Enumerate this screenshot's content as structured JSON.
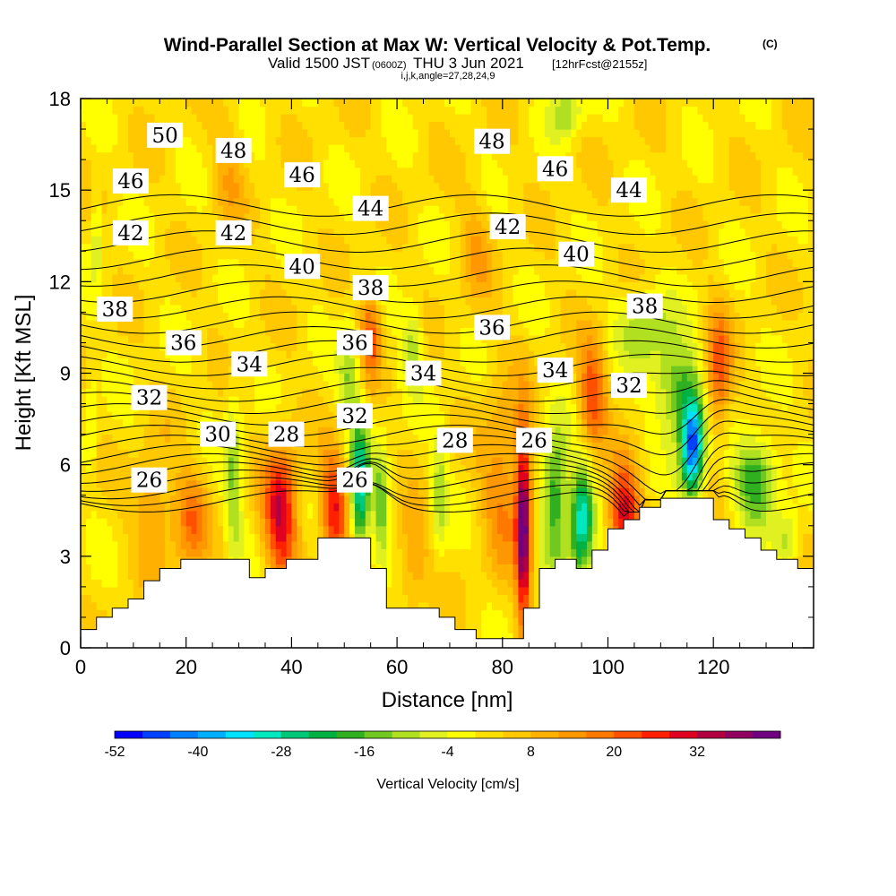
{
  "chart_data": {
    "type": "heatmap",
    "title": "Wind-Parallel Section at Max W: Vertical Velocity & Pot.Temp.",
    "title_mark": "(C)",
    "subtitle_main": "Valid 1500 JST",
    "subtitle_utc": "(0600Z)",
    "subtitle_date": "THU 3 Jun 2021",
    "subtitle_run": "[12hrFcst@2155z]",
    "subtitle_indices": "i,j,k,angle=27,28,24,9",
    "xlabel": "Distance [nm]",
    "ylabel": "Height [Kft MSL]",
    "xlim": [
      0,
      139
    ],
    "ylim": [
      0,
      18
    ],
    "x_ticks": [
      0,
      20,
      40,
      60,
      80,
      100,
      120
    ],
    "y_ticks": [
      0,
      3,
      6,
      9,
      12,
      15,
      18
    ],
    "colorbar": {
      "label": "Vertical Velocity [cm/s]",
      "min": -52,
      "max": 40,
      "step": 4,
      "tick_values": [
        -52,
        -40,
        -28,
        -16,
        -4,
        8,
        20,
        32
      ],
      "colors": [
        "#0000ff",
        "#0040ff",
        "#0080ff",
        "#00b0ff",
        "#00e0ff",
        "#00e8c0",
        "#00c878",
        "#00b040",
        "#30b020",
        "#70c820",
        "#b0e020",
        "#e0f020",
        "#ffff00",
        "#ffe000",
        "#ffc800",
        "#ffb000",
        "#ff9800",
        "#ff7800",
        "#ff5000",
        "#ff2000",
        "#e00020",
        "#b00040",
        "#900060",
        "#700080"
      ]
    },
    "terrain": [
      [
        0,
        0.6
      ],
      [
        3,
        0.6
      ],
      [
        3,
        1
      ],
      [
        6,
        1
      ],
      [
        6,
        1.3
      ],
      [
        9,
        1.3
      ],
      [
        9,
        1.6
      ],
      [
        12,
        1.6
      ],
      [
        12,
        2.2
      ],
      [
        15,
        2.2
      ],
      [
        15,
        2.6
      ],
      [
        19,
        2.6
      ],
      [
        19,
        2.9
      ],
      [
        32,
        2.9
      ],
      [
        32,
        2.3
      ],
      [
        35,
        2.3
      ],
      [
        35,
        2.6
      ],
      [
        39,
        2.6
      ],
      [
        39,
        2.9
      ],
      [
        45,
        2.9
      ],
      [
        45,
        3.6
      ],
      [
        55,
        3.6
      ],
      [
        55,
        2.6
      ],
      [
        58,
        2.6
      ],
      [
        58,
        1.3
      ],
      [
        68,
        1.3
      ],
      [
        68,
        1
      ],
      [
        71,
        1
      ],
      [
        71,
        0.6
      ],
      [
        75,
        0.6
      ],
      [
        75,
        0.3
      ],
      [
        84,
        0.3
      ],
      [
        84,
        1.3
      ],
      [
        87,
        1.3
      ],
      [
        87,
        2.6
      ],
      [
        90,
        2.6
      ],
      [
        90,
        2.9
      ],
      [
        94,
        2.9
      ],
      [
        94,
        2.6
      ],
      [
        97,
        2.6
      ],
      [
        97,
        3.2
      ],
      [
        100,
        3.2
      ],
      [
        100,
        3.9
      ],
      [
        103,
        3.9
      ],
      [
        103,
        4.2
      ],
      [
        106,
        4.2
      ],
      [
        106,
        4.6
      ],
      [
        110,
        4.6
      ],
      [
        110,
        4.9
      ],
      [
        120,
        4.9
      ],
      [
        120,
        4.2
      ],
      [
        123,
        4.2
      ],
      [
        123,
        3.9
      ],
      [
        126,
        3.9
      ],
      [
        126,
        3.6
      ],
      [
        129,
        3.6
      ],
      [
        129,
        3.2
      ],
      [
        132,
        3.2
      ],
      [
        132,
        2.9
      ],
      [
        136,
        2.9
      ],
      [
        136,
        2.6
      ],
      [
        139,
        2.6
      ]
    ],
    "w_features": [
      {
        "x": 14,
        "z": 4.5,
        "w": 12,
        "rx": 4,
        "rz": 2
      },
      {
        "x": 21,
        "z": 4.2,
        "w": 16,
        "rx": 3,
        "rz": 1.6
      },
      {
        "x": 29,
        "z": 5.5,
        "w": -14,
        "rx": 1.6,
        "rz": 2.8
      },
      {
        "x": 38,
        "z": 4.4,
        "w": 30,
        "rx": 3.2,
        "rz": 2.2
      },
      {
        "x": 48,
        "z": 4.6,
        "w": 26,
        "rx": 2.6,
        "rz": 1.8
      },
      {
        "x": 53,
        "z": 5.2,
        "w": -32,
        "rx": 1.8,
        "rz": 2.2
      },
      {
        "x": 57,
        "z": 4.6,
        "w": -16,
        "rx": 1.4,
        "rz": 2
      },
      {
        "x": 55,
        "z": 10.3,
        "w": 20,
        "rx": 2,
        "rz": 1.4
      },
      {
        "x": 51,
        "z": 9,
        "w": -14,
        "rx": 2,
        "rz": 1.6
      },
      {
        "x": 63,
        "z": 3,
        "w": 12,
        "rx": 3,
        "rz": 1.6
      },
      {
        "x": 68,
        "z": 5,
        "w": -12,
        "rx": 1.5,
        "rz": 2
      },
      {
        "x": 63,
        "z": 10,
        "w": -12,
        "rx": 2,
        "rz": 1.4
      },
      {
        "x": 80,
        "z": 5.5,
        "w": 14,
        "rx": 4,
        "rz": 3
      },
      {
        "x": 84,
        "z": 4,
        "w": 40,
        "rx": 1.4,
        "rz": 3.2
      },
      {
        "x": 90,
        "z": 5,
        "w": -24,
        "rx": 2.4,
        "rz": 2.2
      },
      {
        "x": 95,
        "z": 4.2,
        "w": -34,
        "rx": 2.2,
        "rz": 1.8
      },
      {
        "x": 103,
        "z": 4.4,
        "w": 30,
        "rx": 3,
        "rz": 1.6
      },
      {
        "x": 97,
        "z": 8.2,
        "w": 22,
        "rx": 2.6,
        "rz": 1.8
      },
      {
        "x": 107,
        "z": 10.5,
        "w": -14,
        "rx": 5,
        "rz": 1.2
      },
      {
        "x": 113,
        "z": 8.5,
        "w": -20,
        "rx": 4,
        "rz": 1.5
      },
      {
        "x": 116,
        "z": 6.6,
        "w": -48,
        "rx": 2.2,
        "rz": 1.6
      },
      {
        "x": 121,
        "z": 9,
        "w": 20,
        "rx": 2.4,
        "rz": 2
      },
      {
        "x": 128,
        "z": 5.6,
        "w": -22,
        "rx": 4,
        "rz": 1.4
      },
      {
        "x": 134,
        "z": 3.5,
        "w": -12,
        "rx": 2.2,
        "rz": 1
      },
      {
        "x": 92,
        "z": 17.6,
        "w": -14,
        "rx": 3,
        "rz": 0.8
      },
      {
        "x": 3,
        "z": 13.6,
        "w": -10,
        "rx": 1,
        "rz": 1.6
      },
      {
        "x": 2,
        "z": 7.4,
        "w": -8,
        "rx": 1,
        "rz": 1.6
      },
      {
        "x": 28,
        "z": 15.5,
        "w": 8,
        "rx": 3,
        "rz": 2
      },
      {
        "x": 75,
        "z": 13,
        "w": 8,
        "rx": 3,
        "rz": 2
      }
    ],
    "theta_levels": [
      26,
      27,
      28,
      29,
      30,
      31,
      32,
      33,
      34,
      35,
      36,
      37,
      38,
      39,
      40,
      41,
      42,
      43,
      44,
      45,
      46,
      47,
      48,
      49,
      50
    ],
    "theta_labels": [
      {
        "text": "50",
        "x": 16,
        "z": 16.8
      },
      {
        "text": "48",
        "x": 29,
        "z": 16.3
      },
      {
        "text": "48",
        "x": 78,
        "z": 16.6
      },
      {
        "text": "46",
        "x": 9.5,
        "z": 15.3
      },
      {
        "text": "46",
        "x": 42,
        "z": 15.5
      },
      {
        "text": "46",
        "x": 90,
        "z": 15.7
      },
      {
        "text": "44",
        "x": 55,
        "z": 14.4
      },
      {
        "text": "44",
        "x": 104,
        "z": 15
      },
      {
        "text": "42",
        "x": 9.5,
        "z": 13.6
      },
      {
        "text": "42",
        "x": 29,
        "z": 13.6
      },
      {
        "text": "42",
        "x": 81,
        "z": 13.8
      },
      {
        "text": "40",
        "x": 42,
        "z": 12.5
      },
      {
        "text": "40",
        "x": 94,
        "z": 12.9
      },
      {
        "text": "38",
        "x": 6.5,
        "z": 11.1
      },
      {
        "text": "38",
        "x": 55,
        "z": 11.8
      },
      {
        "text": "38",
        "x": 107,
        "z": 11.2
      },
      {
        "text": "36",
        "x": 19.5,
        "z": 10
      },
      {
        "text": "36",
        "x": 52,
        "z": 10
      },
      {
        "text": "36",
        "x": 78,
        "z": 10.5
      },
      {
        "text": "34",
        "x": 32,
        "z": 9.3
      },
      {
        "text": "34",
        "x": 65,
        "z": 9
      },
      {
        "text": "34",
        "x": 90,
        "z": 9.1
      },
      {
        "text": "32",
        "x": 13,
        "z": 8.2
      },
      {
        "text": "32",
        "x": 52,
        "z": 7.6
      },
      {
        "text": "32",
        "x": 104,
        "z": 8.6
      },
      {
        "text": "30",
        "x": 26,
        "z": 7
      },
      {
        "text": "28",
        "x": 39,
        "z": 7
      },
      {
        "text": "28",
        "x": 71,
        "z": 6.8
      },
      {
        "text": "26",
        "x": 13,
        "z": 5.5
      },
      {
        "text": "26",
        "x": 52,
        "z": 5.5
      },
      {
        "text": "26",
        "x": 86,
        "z": 6.8
      }
    ]
  }
}
